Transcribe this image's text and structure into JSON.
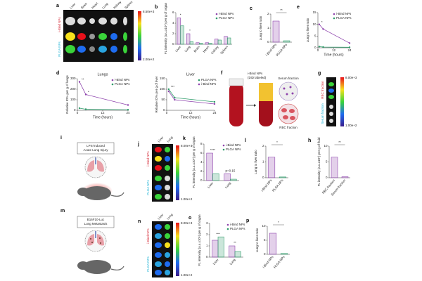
{
  "figure": {
    "a": {
      "letter": "a",
      "organs": [
        "Liver",
        "Brain",
        "Heart",
        "Lung",
        "Kidney",
        "Spleen"
      ],
      "rows": [
        "i-Bind NPs",
        "PLGA NPs"
      ],
      "scale": [
        "8.50e+3",
        "2.00e+2"
      ]
    },
    "f": {
      "letter": "f",
      "label": [
        "i-Bind NPs",
        "(DiD labeled)"
      ],
      "serum": "Serum fraction",
      "rbc": "RBC fraction"
    },
    "g": {
      "letter": "g",
      "rows": [
        "RBC fraction",
        "Serum fraction"
      ],
      "scale": [
        "8.00e+3",
        "1.00e+2"
      ]
    },
    "i": {
      "letter": "i",
      "model": [
        "LPS-induced",
        "Acute Lung Injury"
      ]
    },
    "j": {
      "letter": "j",
      "organs": [
        "Liver",
        "Lung"
      ],
      "rows": [
        "i-Bind NPs",
        "PLGA NPs"
      ],
      "scale": [
        "8.00e+3",
        "1.00e+2"
      ]
    },
    "m": {
      "letter": "m",
      "model": [
        "B16F10-Luc",
        "Lung Metastasis"
      ]
    },
    "n": {
      "letter": "n",
      "organs": [
        "Liver",
        "Lung"
      ],
      "rows": [
        "i-Bind NPs",
        "PLGA NPs"
      ],
      "scale": [
        "8.00e+3",
        "1.00e+2"
      ]
    }
  },
  "chart_data": [
    {
      "type": "bar",
      "panel": "b",
      "ylabel": "FL intensity (a.u.x10⁶) per g of organ",
      "categories": [
        "Liver",
        "Lung",
        "Brain",
        "Heart",
        "Kidney",
        "Spleen"
      ],
      "series": [
        {
          "name": "i-Bind NPs",
          "color": "#8e44ad",
          "values": [
            5,
            2,
            0.3,
            0.3,
            1,
            1.5
          ]
        },
        {
          "name": "PLGA NPs",
          "color": "#2e9c6a",
          "values": [
            3.5,
            0.5,
            0.2,
            0.2,
            0.8,
            1.2
          ]
        }
      ],
      "ylim": [
        0,
        6
      ],
      "yticks": [
        0,
        2,
        4,
        6
      ],
      "annotations": [
        "*",
        "*"
      ]
    },
    {
      "type": "bar",
      "panel": "c",
      "ylabel": "Lung to liver ratio",
      "categories": [
        "i-Bind NPs",
        "PLGA NPs"
      ],
      "values": [
        1.5,
        0.1
      ],
      "colors": [
        "#8e44ad",
        "#2e9c6a"
      ],
      "ylim": [
        0,
        2
      ],
      "yticks": [
        0,
        1,
        2
      ],
      "annotations": [
        "**"
      ]
    },
    {
      "type": "line",
      "panel": "e",
      "ylabel": "Lung to liver ratio",
      "xlabel": "Time (hours)",
      "x": [
        1,
        4,
        24
      ],
      "series": [
        {
          "name": "i-Bind NPs",
          "color": "#8e44ad",
          "values": [
            10,
            8,
            2
          ]
        },
        {
          "name": "PLGA NPs",
          "color": "#2e9c6a",
          "values": [
            0.5,
            0.3,
            0.2
          ]
        }
      ],
      "xlim": [
        0,
        24
      ],
      "xticks": [
        0,
        12,
        24
      ],
      "ylim": [
        0,
        15
      ],
      "yticks": [
        0,
        5,
        10,
        15
      ],
      "annotations": [
        "*"
      ]
    },
    {
      "type": "line",
      "panel": "d",
      "title": "Lungs",
      "ylabel": "Relative ID% per g of lungs",
      "xlabel": "Time (hours)",
      "x": [
        1,
        4,
        24
      ],
      "series": [
        {
          "name": "i-Bind NPs",
          "color": "#8e44ad",
          "values": [
            270,
            150,
            50
          ]
        },
        {
          "name": "PLGA NPs",
          "color": "#2e9c6a",
          "values": [
            20,
            10,
            5
          ]
        }
      ],
      "xlim": [
        0,
        24
      ],
      "xticks": [
        0,
        12,
        24
      ],
      "ylim": [
        0,
        300
      ],
      "yticks": [
        0,
        100,
        200,
        300
      ],
      "annotations": [
        "**",
        "*"
      ]
    },
    {
      "type": "line",
      "title": "Liver",
      "ylabel": "Relative ID% per g of liver",
      "xlabel": "Time (hours)",
      "x": [
        1,
        4,
        24
      ],
      "series": [
        {
          "name": "PLGA NPs",
          "color": "#2e9c6a",
          "values": [
            100,
            60,
            40
          ]
        },
        {
          "name": "i-Bind NPs",
          "color": "#8e44ad",
          "values": [
            90,
            50,
            30
          ]
        }
      ],
      "xlim": [
        0,
        24
      ],
      "xticks": [
        0,
        12,
        24
      ],
      "ylim": [
        0,
        150
      ],
      "yticks": [
        0,
        50,
        100,
        150
      ],
      "annotations": [
        "***"
      ]
    },
    {
      "type": "bar",
      "panel": "k",
      "ylabel": "FL intensity (a.u.x10⁶) per g of organ",
      "categories": [
        "Liver",
        "Lung"
      ],
      "series": [
        {
          "name": "i-Bind NPs",
          "color": "#8e44ad",
          "values": [
            6,
            1.5
          ]
        },
        {
          "name": "PLGA NPs",
          "color": "#2e9c6a",
          "values": [
            1.5,
            0.3
          ]
        }
      ],
      "ylim": [
        0,
        8
      ],
      "yticks": [
        0,
        2,
        4,
        6,
        8
      ],
      "annotations": [
        "****",
        "p=0.15"
      ]
    },
    {
      "type": "bar",
      "panel": "l",
      "ylabel": "Lung to liver ratio",
      "categories": [
        "i-Bind NPs",
        "PLGA NPs"
      ],
      "values": [
        1.3,
        0.05
      ],
      "colors": [
        "#8e44ad",
        "#2e9c6a"
      ],
      "ylim": [
        0,
        2
      ],
      "yticks": [
        0,
        1,
        2
      ],
      "annotations": [
        "*"
      ]
    },
    {
      "type": "bar",
      "panel": "h",
      "ylabel": "FL intensity (a.u.x10⁶) per g of fluid",
      "categories": [
        "RBC fraction",
        "Serum fraction"
      ],
      "values": [
        6.5,
        0.3
      ],
      "colors": [
        "#8e44ad",
        "#8e44ad"
      ],
      "ylim": [
        0,
        10
      ],
      "yticks": [
        0,
        5,
        10
      ],
      "annotations": [
        "**"
      ]
    },
    {
      "type": "bar",
      "panel": "o",
      "ylabel": "FL intensity (a.u.x10⁶) per g of organ",
      "categories": [
        "Liver",
        "Lung"
      ],
      "series": [
        {
          "name": "i-Bind NPs",
          "color": "#8e44ad",
          "values": [
            1.5,
            1.0
          ]
        },
        {
          "name": "PLGA NPs",
          "color": "#2e9c6a",
          "values": [
            1.8,
            0.5
          ]
        }
      ],
      "ylim": [
        0,
        3
      ],
      "yticks": [
        0,
        1,
        2,
        3
      ],
      "annotations": [
        "***",
        "**"
      ]
    },
    {
      "type": "bar",
      "panel": "p",
      "ylabel": "Lung to liver ratio",
      "categories": [
        "i-Bind NPs",
        "PLGA NPs"
      ],
      "values": [
        7.5,
        0.3
      ],
      "colors": [
        "#8e44ad",
        "#2e9c6a"
      ],
      "ylim": [
        0,
        10
      ],
      "yticks": [
        0,
        5,
        10
      ],
      "annotations": [
        "*"
      ]
    }
  ]
}
